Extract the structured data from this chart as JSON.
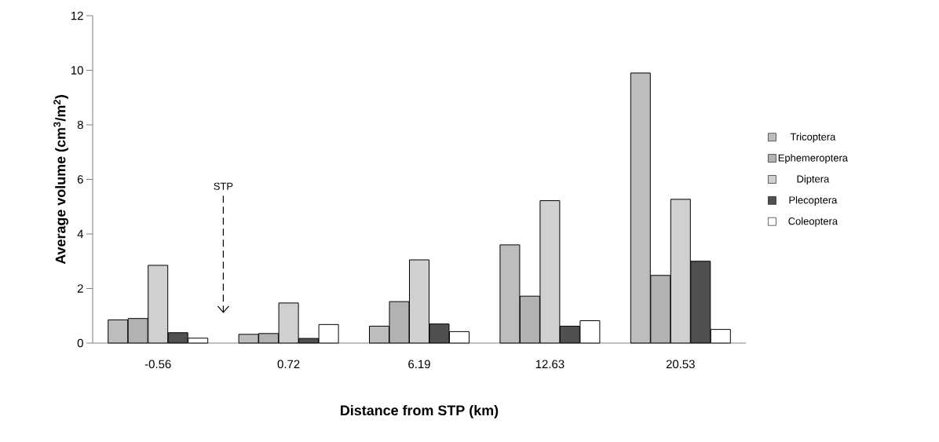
{
  "chart_data": {
    "type": "bar",
    "xlabel": "Distance from STP (km)",
    "ylabel": "Average volume (cm$^{3}$/m$^{2}$)",
    "categories": [
      "-0.56",
      "0.72",
      "6.19",
      "12.63",
      "20.53"
    ],
    "series": [
      {
        "name": "Tricoptera",
        "color": "#bdbdbd",
        "values": [
          0.85,
          0.32,
          0.62,
          3.6,
          9.9
        ]
      },
      {
        "name": "Ephemeroptera",
        "color": "#b2b2b2",
        "values": [
          0.9,
          0.35,
          1.52,
          1.72,
          2.48
        ]
      },
      {
        "name": "Diptera",
        "color": "#d0d0d0",
        "values": [
          2.85,
          1.47,
          3.05,
          5.22,
          5.27
        ]
      },
      {
        "name": "Plecoptera",
        "color": "#505050",
        "values": [
          0.38,
          0.17,
          0.7,
          0.62,
          3.0
        ]
      },
      {
        "name": "Coleoptera",
        "color": "#ffffff",
        "values": [
          0.18,
          0.68,
          0.42,
          0.82,
          0.5
        ]
      }
    ],
    "ylim": [
      0,
      12
    ],
    "yticks": [
      0,
      2,
      4,
      6,
      8,
      10,
      12
    ],
    "legend": "right",
    "grid": false,
    "annotations": [
      "STP"
    ]
  }
}
